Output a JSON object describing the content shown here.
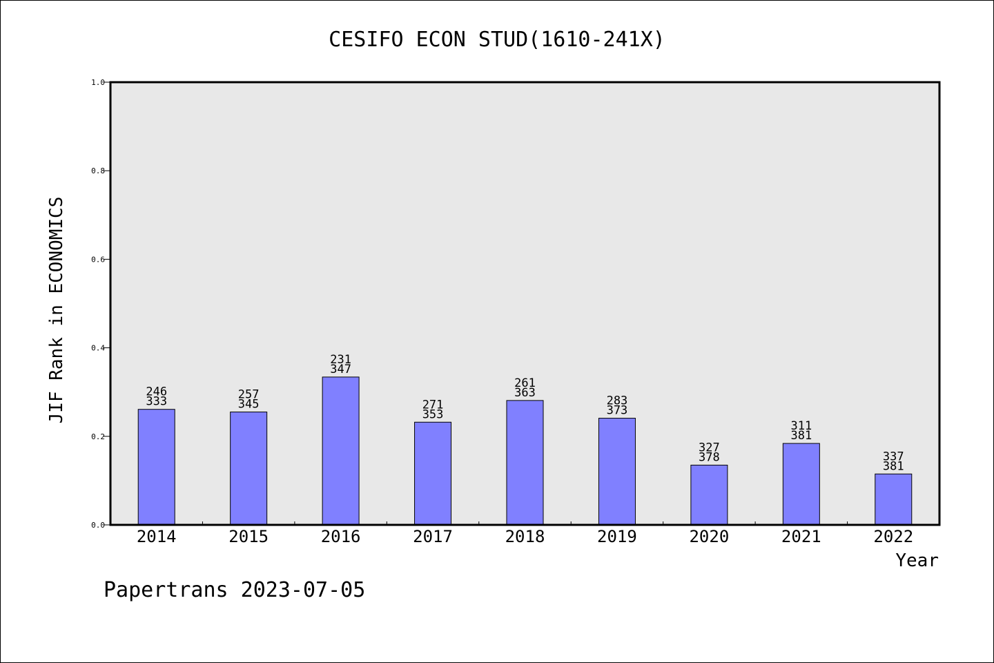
{
  "chart_data": {
    "type": "bar",
    "title": "CESIFO ECON STUD(1610-241X)",
    "xlabel": "Year",
    "ylabel": "JIF Rank in ECONOMICS",
    "ylim": [
      0.0,
      1.0
    ],
    "yticks": [
      "0.0",
      "0.2",
      "0.4",
      "0.6",
      "0.8",
      "1.0"
    ],
    "categories": [
      "2014",
      "2015",
      "2016",
      "2017",
      "2018",
      "2019",
      "2020",
      "2021",
      "2022"
    ],
    "values": [
      0.261,
      0.255,
      0.334,
      0.232,
      0.281,
      0.241,
      0.135,
      0.184,
      0.115
    ],
    "ranks": [
      "246",
      "257",
      "231",
      "271",
      "261",
      "283",
      "327",
      "311",
      "337"
    ],
    "totals": [
      "333",
      "345",
      "347",
      "353",
      "363",
      "373",
      "378",
      "381",
      "381"
    ],
    "grid": false,
    "colors": {
      "bar": "#8080ff",
      "plot_bg": "#e8e8e8"
    }
  },
  "footer": "Papertrans 2023-07-05"
}
